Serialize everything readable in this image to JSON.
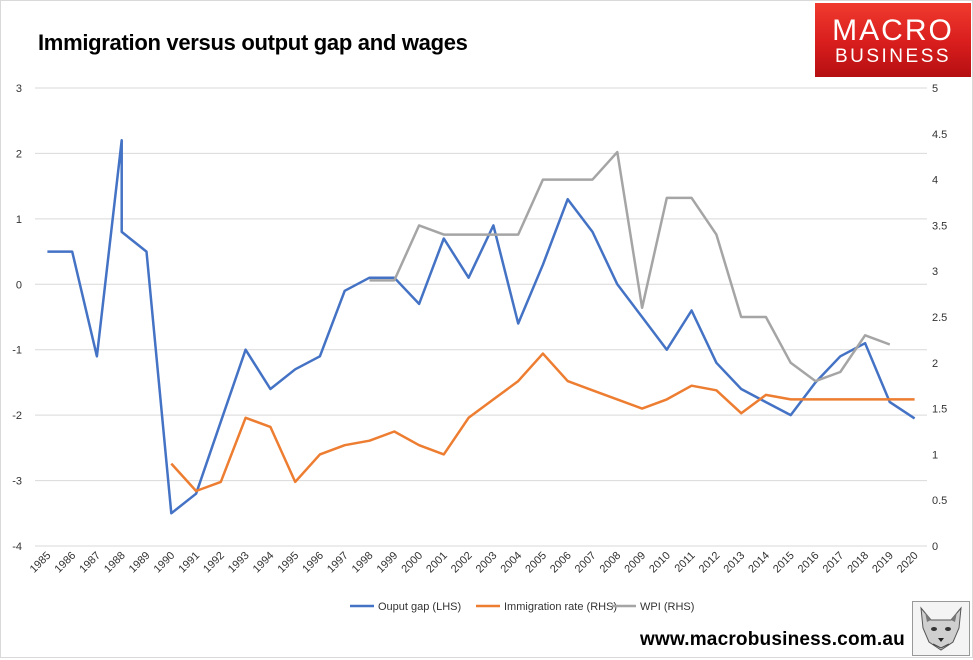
{
  "title": "Immigration versus output gap and wages",
  "logo": {
    "line1": "MACRO",
    "line2": "BUSINESS",
    "icon": "macrobusiness-logo"
  },
  "website": "www.macrobusiness.com.au",
  "wolf_icon": "wolf-face-icon",
  "colors": {
    "gap": "#4472C4",
    "immigration": "#ED7D31",
    "wpi": "#A5A5A5",
    "grid": "#d9d9d9",
    "logo_red": "#e02424"
  },
  "chart_data": {
    "type": "line",
    "title": "Immigration versus output gap and wages",
    "x": [
      "1985",
      "1986",
      "1987",
      "1988",
      "1989",
      "1990",
      "1991",
      "1992",
      "1993",
      "1994",
      "1995",
      "1996",
      "1997",
      "1998",
      "1999",
      "2000",
      "2001",
      "2002",
      "2003",
      "2004",
      "2005",
      "2006",
      "2007",
      "2008",
      "2009",
      "2010",
      "2011",
      "2012",
      "2013",
      "2014",
      "2015",
      "2016",
      "2017",
      "2018",
      "2019",
      "2020"
    ],
    "y_left": {
      "min": -4,
      "max": 3,
      "ticks": [
        "3",
        "2",
        "1",
        "0",
        "-1",
        "-2",
        "-3",
        "-4"
      ]
    },
    "y_right": {
      "min": 0,
      "max": 5,
      "ticks": [
        "5",
        "4.5",
        "4",
        "3.5",
        "3",
        "2.5",
        "2",
        "1.5",
        "1",
        "0.5",
        "0"
      ]
    },
    "grid": true,
    "legend_position": "bottom",
    "series": [
      {
        "name": "Ouput gap (LHS)",
        "axis": "left",
        "color": "#4472C4",
        "values": [
          0.5,
          0.5,
          -1.1,
          0.8,
          0.5,
          -3.5,
          -3.2,
          -2.1,
          -1.0,
          -1.6,
          -1.3,
          -1.1,
          -0.1,
          0.1,
          0.1,
          -0.3,
          0.7,
          0.1,
          0.9,
          -0.6,
          0.3,
          1.3,
          0.8,
          0.0,
          -0.5,
          -1.0,
          -0.4,
          -1.2,
          -1.6,
          -1.8,
          -2.0,
          -1.5,
          -1.1,
          -0.9,
          -1.8,
          -2.05
        ],
        "note": "1988 rises to 2.2 before the vertical drop to 0.8"
      },
      {
        "name": "Immigration rate (RHS)",
        "axis": "right",
        "color": "#ED7D31",
        "values": [
          null,
          null,
          null,
          null,
          null,
          0.9,
          0.6,
          0.7,
          1.4,
          1.3,
          0.7,
          1.0,
          1.1,
          1.15,
          1.25,
          1.1,
          1.0,
          1.4,
          1.6,
          1.8,
          2.1,
          1.8,
          1.7,
          1.6,
          1.5,
          1.6,
          1.75,
          1.7,
          1.45,
          1.65,
          1.6,
          1.6,
          1.6,
          1.6,
          1.6,
          1.6
        ]
      },
      {
        "name": "WPI (RHS)",
        "axis": "right",
        "color": "#A5A5A5",
        "values": [
          null,
          null,
          null,
          null,
          null,
          null,
          null,
          null,
          null,
          null,
          null,
          null,
          null,
          2.9,
          2.9,
          3.5,
          3.4,
          3.4,
          3.4,
          3.4,
          4.0,
          4.0,
          4.0,
          4.3,
          2.6,
          3.8,
          3.8,
          3.4,
          2.5,
          2.5,
          2.0,
          1.8,
          1.9,
          2.3,
          2.2,
          null
        ]
      }
    ]
  }
}
